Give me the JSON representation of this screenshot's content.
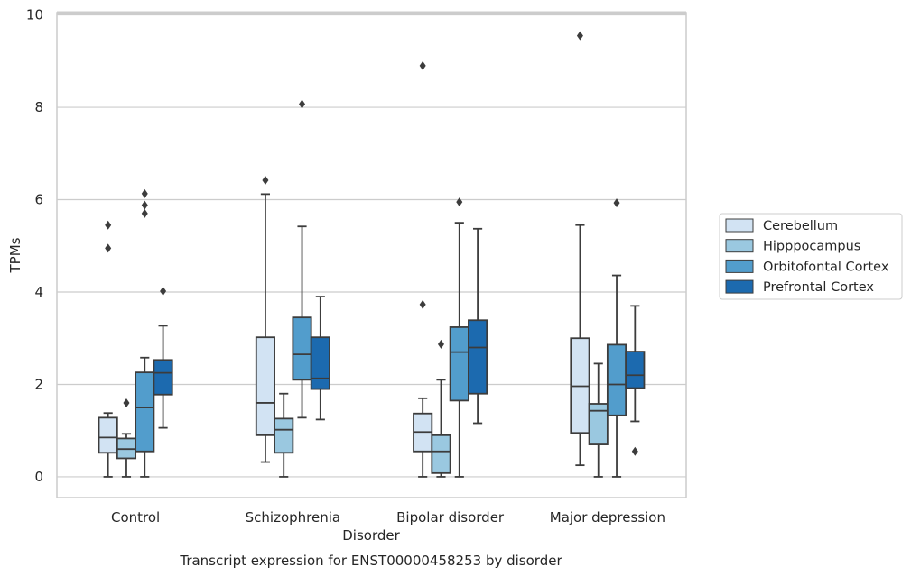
{
  "chart_data": {
    "type": "box",
    "caption": "Transcript expression for ENST00000458253 by disorder",
    "xlabel": "Disorder",
    "ylabel": "TPMs",
    "ylim": [
      -0.45,
      10.05
    ],
    "yticks": [
      "0",
      "2",
      "4",
      "6",
      "8",
      "10"
    ],
    "grid": "horizontal",
    "legend_position": "right",
    "categories": [
      "Control",
      "Schizophrenia",
      "Bipolar disorder",
      "Major depression"
    ],
    "series": [
      {
        "name": "Cerebellum",
        "color": "#d2e3f3",
        "boxes": [
          {
            "whisker_low": 0.0,
            "q1": 0.52,
            "median": 0.85,
            "q3": 1.28,
            "whisker_high": 1.38,
            "outliers": [
              4.95,
              5.45
            ]
          },
          {
            "whisker_low": 0.32,
            "q1": 0.9,
            "median": 1.6,
            "q3": 3.02,
            "whisker_high": 6.12,
            "outliers": [
              6.42
            ]
          },
          {
            "whisker_low": 0.0,
            "q1": 0.55,
            "median": 0.97,
            "q3": 1.37,
            "whisker_high": 1.7,
            "outliers": [
              3.73,
              8.9
            ]
          },
          {
            "whisker_low": 0.25,
            "q1": 0.95,
            "median": 1.96,
            "q3": 3.0,
            "whisker_high": 5.45,
            "outliers": [
              9.55
            ]
          }
        ]
      },
      {
        "name": "Hipppocampus",
        "color": "#9ac8e0",
        "boxes": [
          {
            "whisker_low": 0.0,
            "q1": 0.4,
            "median": 0.6,
            "q3": 0.83,
            "whisker_high": 0.93,
            "outliers": [
              1.6
            ]
          },
          {
            "whisker_low": 0.0,
            "q1": 0.52,
            "median": 1.02,
            "q3": 1.26,
            "whisker_high": 1.8,
            "outliers": []
          },
          {
            "whisker_low": 0.0,
            "q1": 0.08,
            "median": 0.55,
            "q3": 0.9,
            "whisker_high": 2.1,
            "outliers": [
              2.87
            ]
          },
          {
            "whisker_low": 0.0,
            "q1": 0.7,
            "median": 1.43,
            "q3": 1.58,
            "whisker_high": 2.45,
            "outliers": []
          }
        ]
      },
      {
        "name": "Orbitofontal Cortex",
        "color": "#529dcc",
        "boxes": [
          {
            "whisker_low": 0.0,
            "q1": 0.55,
            "median": 1.5,
            "q3": 2.26,
            "whisker_high": 2.58,
            "outliers": [
              5.7,
              5.88,
              6.13
            ]
          },
          {
            "whisker_low": 1.28,
            "q1": 2.1,
            "median": 2.65,
            "q3": 3.45,
            "whisker_high": 5.42,
            "outliers": [
              8.07
            ]
          },
          {
            "whisker_low": 0.0,
            "q1": 1.65,
            "median": 2.7,
            "q3": 3.24,
            "whisker_high": 5.5,
            "outliers": [
              5.95
            ]
          },
          {
            "whisker_low": 0.0,
            "q1": 1.33,
            "median": 2.0,
            "q3": 2.86,
            "whisker_high": 4.36,
            "outliers": [
              5.93
            ]
          }
        ]
      },
      {
        "name": "Prefrontal Cortex",
        "color": "#1c6aaf",
        "boxes": [
          {
            "whisker_low": 1.06,
            "q1": 1.78,
            "median": 2.25,
            "q3": 2.53,
            "whisker_high": 3.27,
            "outliers": [
              4.02
            ]
          },
          {
            "whisker_low": 1.24,
            "q1": 1.9,
            "median": 2.13,
            "q3": 3.02,
            "whisker_high": 3.9,
            "outliers": []
          },
          {
            "whisker_low": 1.16,
            "q1": 1.8,
            "median": 2.8,
            "q3": 3.39,
            "whisker_high": 5.37,
            "outliers": []
          },
          {
            "whisker_low": 1.2,
            "q1": 1.92,
            "median": 2.2,
            "q3": 2.71,
            "whisker_high": 3.7,
            "outliers": [
              0.55
            ]
          }
        ]
      }
    ]
  }
}
